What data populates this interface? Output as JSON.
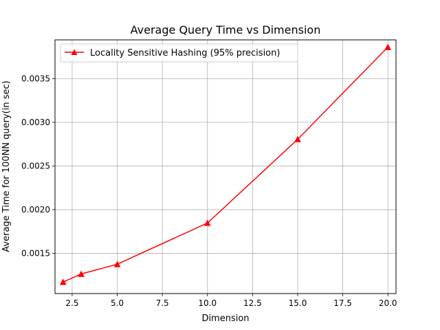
{
  "chart_data": {
    "type": "line",
    "title": "Average Query Time vs Dimension",
    "xlabel": "Dimension",
    "ylabel": "Average Time for 100NN query(in sec)",
    "xlim": [
      1.55,
      20.45
    ],
    "ylim": [
      0.001039,
      0.003944
    ],
    "x_ticks": [
      2.5,
      5.0,
      7.5,
      10.0,
      12.5,
      15.0,
      17.5,
      20.0
    ],
    "x_tick_labels": [
      "2.5",
      "5.0",
      "7.5",
      "10.0",
      "12.5",
      "15.0",
      "17.5",
      "20.0"
    ],
    "y_ticks": [
      0.0015,
      0.002,
      0.0025,
      0.003,
      0.0035
    ],
    "y_tick_labels": [
      "0.0015",
      "0.0020",
      "0.0025",
      "0.0030",
      "0.0035"
    ],
    "grid": true,
    "legend_position": "top-left",
    "series": [
      {
        "name": "Locality Sensitive Hashing (95% precision)",
        "color": "#ff0000",
        "marker": "triangle-up",
        "x": [
          2,
          3,
          5,
          10,
          15,
          20
        ],
        "y": [
          0.001171,
          0.001263,
          0.001375,
          0.001847,
          0.002806,
          0.003861
        ]
      }
    ]
  }
}
